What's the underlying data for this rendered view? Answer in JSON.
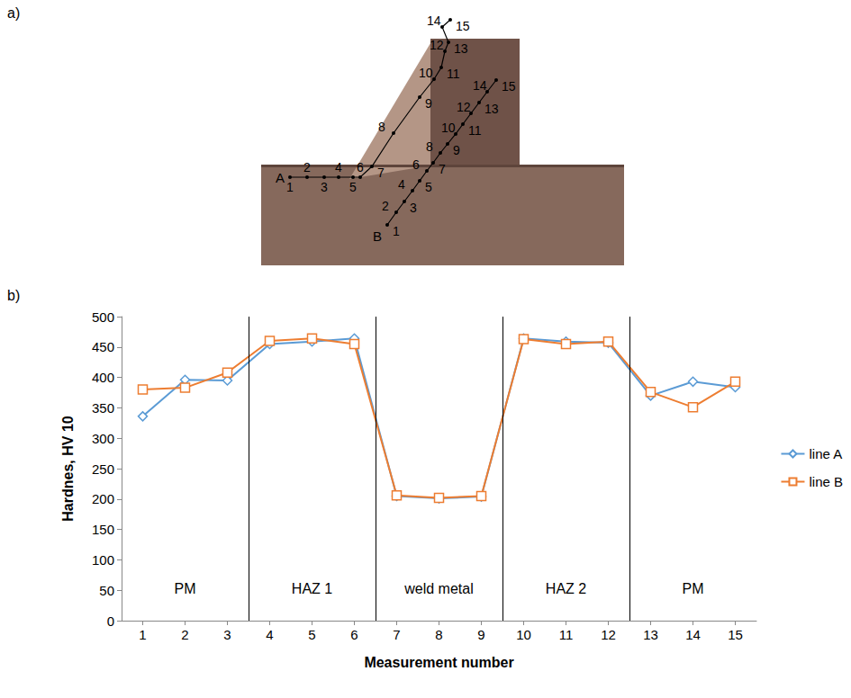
{
  "chart_data": {
    "type": "line",
    "panel_label": "b)",
    "x_label": "Measurement number",
    "y_label": "Hardnes, HV 10",
    "x": [
      1,
      2,
      3,
      4,
      5,
      6,
      7,
      8,
      9,
      10,
      11,
      12,
      13,
      14,
      15
    ],
    "xlim": [
      0.5,
      15.5
    ],
    "xticks": [
      1,
      2,
      3,
      4,
      5,
      6,
      7,
      8,
      9,
      10,
      11,
      12,
      13,
      14,
      15
    ],
    "ylim": [
      0,
      500
    ],
    "yticks": [
      0,
      50,
      100,
      150,
      200,
      250,
      300,
      350,
      400,
      450,
      500
    ],
    "grid": false,
    "legend": "right",
    "series": [
      {
        "name": "line A",
        "color": "#5b9bd5",
        "marker": "diamond",
        "values": [
          336,
          396,
          395,
          455,
          459,
          464,
          205,
          201,
          204,
          464,
          459,
          457,
          370,
          393,
          384
        ]
      },
      {
        "name": "line B",
        "color": "#ed7d31",
        "marker": "square",
        "values": [
          380,
          383,
          408,
          460,
          464,
          455,
          206,
          202,
          205,
          463,
          455,
          459,
          376,
          351,
          393
        ]
      }
    ],
    "zones": [
      {
        "label": "PM",
        "from": 0.5,
        "to": 3.5
      },
      {
        "label": "HAZ 1",
        "from": 3.5,
        "to": 6.5
      },
      {
        "label": "weld metal",
        "from": 6.5,
        "to": 9.5
      },
      {
        "label": "HAZ 2",
        "from": 9.5,
        "to": 12.5
      },
      {
        "label": "PM",
        "from": 12.5,
        "to": 15.5
      }
    ]
  },
  "photo": {
    "panel_label": "a)",
    "lines": [
      {
        "name": "A",
        "points": [
          "1",
          "2",
          "3",
          "4",
          "5",
          "6",
          "7",
          "8",
          "9",
          "10",
          "11",
          "12",
          "13",
          "14",
          "15"
        ]
      },
      {
        "name": "B",
        "points": [
          "1",
          "2",
          "3",
          "4",
          "5",
          "6",
          "7",
          "8",
          "9",
          "10",
          "11",
          "12",
          "13",
          "14",
          "15"
        ]
      }
    ]
  }
}
